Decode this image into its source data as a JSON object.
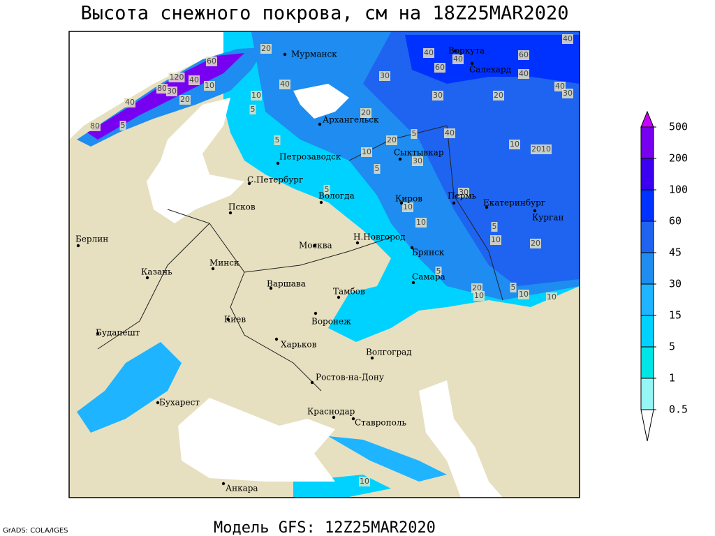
{
  "title": "Высота снежного покрова, см на 18Z25MAR2020",
  "subtitle": "Модель GFS: 12Z25MAR2020",
  "credit": "GrADS: COLA/IGES",
  "cities": [
    "Мурманск",
    "Воркута",
    "Салехард",
    "Архангельск",
    "Сыктывкар",
    "Петрозаводск",
    "С.Петербург",
    "Вологда",
    "Киров",
    "Пермь",
    "Екатеринбург",
    "Курган",
    "Псков",
    "Берлин",
    "Н.Новгород",
    "Москва",
    "Минск",
    "Казань",
    "Варшава",
    "Брянск",
    "Самара",
    "Тамбов",
    "Киев",
    "Воронеж",
    "Будапешт",
    "Харьков",
    "Волгоград",
    "Ростов-на-Дону",
    "Бухарест",
    "Краснодар",
    "Ставрополь",
    "Анкара"
  ],
  "contour_labels": [
    "20",
    "60",
    "120",
    "40",
    "80",
    "30",
    "10",
    "20",
    "40",
    "5",
    "80",
    "10",
    "5",
    "40",
    "5",
    "30",
    "20",
    "20",
    "10",
    "40",
    "60",
    "40",
    "60",
    "40",
    "40",
    "40",
    "30",
    "20",
    "30",
    "40",
    "30",
    "10",
    "2010",
    "5",
    "5",
    "10",
    "10",
    "30",
    "5",
    "10",
    "20",
    "5",
    "20",
    "10",
    "5",
    "10",
    "10",
    "10",
    "5"
  ],
  "colorbar": {
    "levels": [
      0.5,
      1,
      5,
      15,
      30,
      45,
      60,
      100,
      200,
      500
    ],
    "colors": [
      "#ffffff",
      "#96f5f5",
      "#00e6e6",
      "#00d2ff",
      "#1eb4ff",
      "#1e8cf0",
      "#1e64f0",
      "#0032ff",
      "#3c00f0",
      "#7800f0",
      "#c800ff"
    ]
  }
}
